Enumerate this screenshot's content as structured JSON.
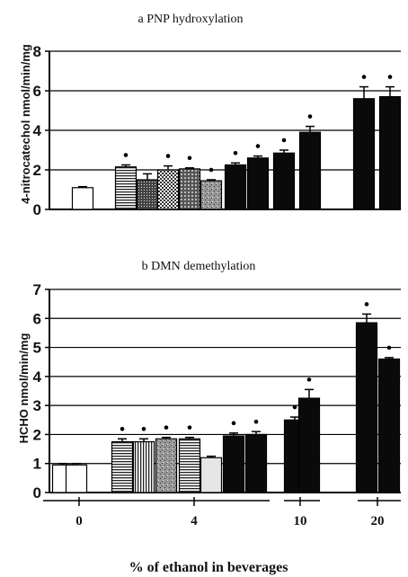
{
  "x_group_ticks": [
    "0",
    "4",
    "10",
    "20"
  ],
  "xlabel": "% of ethanol in  beverages",
  "chart_data": [
    {
      "type": "bar",
      "title": "a  PNP hydroxylation",
      "ylabel": "4-nitrocatechol nmol/min/mg",
      "ylim": [
        0,
        8
      ],
      "yticks": [
        0,
        2,
        4,
        6,
        8
      ],
      "grid": true,
      "bars": [
        {
          "group": "0",
          "value": 1.1,
          "error": 0.05,
          "fill": "white",
          "significant": false
        },
        {
          "group": "4",
          "value": 2.15,
          "error": 0.1,
          "fill": "hstripe",
          "significant": true
        },
        {
          "group": "4",
          "value": 1.5,
          "error": 0.3,
          "fill": "dots",
          "significant": false
        },
        {
          "group": "4",
          "value": 2.0,
          "error": 0.2,
          "fill": "checker",
          "significant": true
        },
        {
          "group": "4",
          "value": 2.05,
          "error": 0.05,
          "fill": "grid",
          "significant": true
        },
        {
          "group": "4",
          "value": 1.45,
          "error": 0.05,
          "fill": "speckle",
          "significant": true
        },
        {
          "group": "4",
          "value": 2.25,
          "error": 0.1,
          "fill": "black",
          "significant": true
        },
        {
          "group": "4",
          "value": 2.6,
          "error": 0.1,
          "fill": "black",
          "significant": true
        },
        {
          "group": "10",
          "value": 2.85,
          "error": 0.15,
          "fill": "black",
          "significant": true
        },
        {
          "group": "10",
          "value": 3.9,
          "error": 0.3,
          "fill": "black",
          "significant": true
        },
        {
          "group": "20",
          "value": 5.6,
          "error": 0.6,
          "fill": "black",
          "significant": true
        },
        {
          "group": "20",
          "value": 5.7,
          "error": 0.5,
          "fill": "black",
          "significant": true
        }
      ]
    },
    {
      "type": "bar",
      "title": "b  DMN demethylation",
      "ylabel": "HCHO nmol/min/mg",
      "ylim": [
        0,
        7
      ],
      "yticks": [
        0,
        1,
        2,
        3,
        4,
        5,
        6,
        7
      ],
      "grid": true,
      "bars": [
        {
          "group": "0",
          "value": 0.95,
          "error": 0.05,
          "fill": "white",
          "significant": false
        },
        {
          "group": "0",
          "value": 0.95,
          "error": 0.05,
          "fill": "white",
          "significant": false
        },
        {
          "group": "4",
          "value": 1.75,
          "error": 0.1,
          "fill": "hstripe",
          "significant": true
        },
        {
          "group": "4",
          "value": 1.75,
          "error": 0.1,
          "fill": "vstripe",
          "significant": true
        },
        {
          "group": "4",
          "value": 1.85,
          "error": 0.05,
          "fill": "speckle",
          "significant": true
        },
        {
          "group": "4",
          "value": 1.85,
          "error": 0.05,
          "fill": "hstripe",
          "significant": true
        },
        {
          "group": "4",
          "value": 1.2,
          "error": 0.05,
          "fill": "lightgray",
          "significant": false
        },
        {
          "group": "4",
          "value": 1.95,
          "error": 0.1,
          "fill": "black",
          "significant": true
        },
        {
          "group": "4",
          "value": 2.0,
          "error": 0.1,
          "fill": "black",
          "significant": true
        },
        {
          "group": "10",
          "value": 2.5,
          "error": 0.1,
          "fill": "black",
          "significant": true
        },
        {
          "group": "10",
          "value": 3.25,
          "error": 0.3,
          "fill": "black",
          "significant": true
        },
        {
          "group": "20",
          "value": 5.85,
          "error": 0.3,
          "fill": "black",
          "significant": true
        },
        {
          "group": "20",
          "value": 4.6,
          "error": 0.05,
          "fill": "black",
          "significant": true
        }
      ]
    }
  ]
}
